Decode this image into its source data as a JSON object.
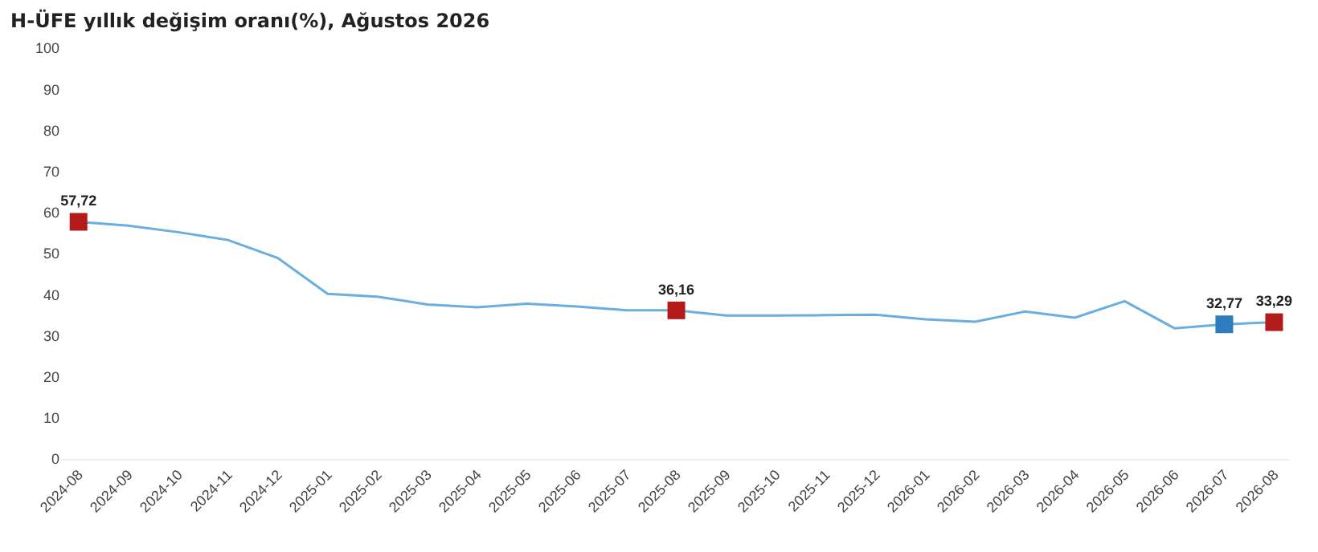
{
  "chart_data": {
    "type": "line",
    "title": "H-ÜFE yıllık değişim oranı(%), Ağustos 2026",
    "categories": [
      "2024-08",
      "2024-09",
      "2024-10",
      "2024-11",
      "2024-12",
      "2025-01",
      "2025-02",
      "2025-03",
      "2025-04",
      "2025-05",
      "2025-06",
      "2025-07",
      "2025-08",
      "2025-09",
      "2025-10",
      "2025-11",
      "2025-12",
      "2026-01",
      "2026-02",
      "2026-03",
      "2026-04",
      "2026-05",
      "2026-06",
      "2026-07",
      "2026-08"
    ],
    "ylim": [
      0,
      100
    ],
    "yticks": [
      0,
      10,
      20,
      30,
      40,
      50,
      60,
      70,
      80,
      90,
      100
    ],
    "grid": false,
    "legend": false,
    "series": [
      {
        "color": "#6aaee0",
        "marker": "none",
        "values": [
          57.72,
          56.8,
          55.2,
          53.3,
          48.9,
          40.2,
          39.5,
          37.6,
          36.9,
          37.8,
          37.1,
          36.2,
          36.16,
          34.9,
          34.9,
          35.0,
          35.1,
          34.0,
          33.4,
          35.9,
          34.4,
          38.4,
          31.8,
          32.77,
          33.29
        ]
      },
      {
        "type": "scatter",
        "marker": "square",
        "colors": [
          "#b31b1b",
          null,
          null,
          null,
          null,
          null,
          null,
          null,
          null,
          null,
          null,
          null,
          "#b31b1b",
          null,
          null,
          null,
          null,
          null,
          null,
          null,
          null,
          null,
          null,
          "#2e7bc0",
          "#b31b1b"
        ],
        "values": [
          57.72,
          null,
          null,
          null,
          null,
          null,
          null,
          null,
          null,
          null,
          null,
          null,
          36.16,
          null,
          null,
          null,
          null,
          null,
          null,
          null,
          null,
          null,
          null,
          32.77,
          33.29
        ],
        "value_labels": [
          "57,72",
          null,
          null,
          null,
          null,
          null,
          null,
          null,
          null,
          null,
          null,
          null,
          "36,16",
          null,
          null,
          null,
          null,
          null,
          null,
          null,
          null,
          null,
          null,
          "32,77",
          "33,29"
        ]
      }
    ]
  }
}
